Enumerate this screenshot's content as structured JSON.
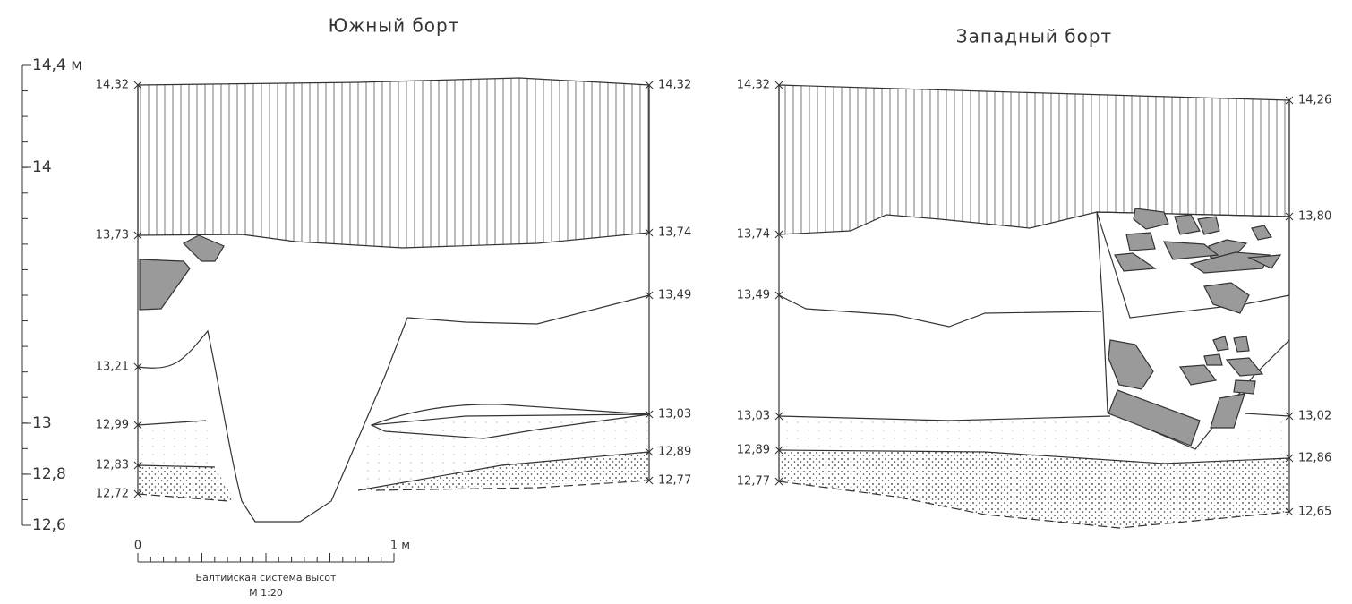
{
  "sections": [
    {
      "title": "Южный борт",
      "left_marks": [
        "14,32",
        "13,73",
        "13,21",
        "12,99",
        "12,83",
        "12,72"
      ],
      "right_marks": [
        "14,32",
        "13,74",
        "13,49",
        "13,03",
        "12,89",
        "12,77"
      ]
    },
    {
      "title": "Западный борт",
      "left_marks": [
        "14,32",
        "13,74",
        "13,49",
        "13,03",
        "12,89",
        "12,77"
      ],
      "right_marks": [
        "14,26",
        "13,80",
        "13,02",
        "12,86",
        "12,65"
      ]
    }
  ],
  "height_scale": {
    "labels": [
      "14,4 м",
      "14",
      "13",
      "12,8",
      "12,6"
    ]
  },
  "length_scale": {
    "start": "0",
    "end": "1 м",
    "caption": "Балтийская система высот",
    "ratio": "М 1:20"
  }
}
